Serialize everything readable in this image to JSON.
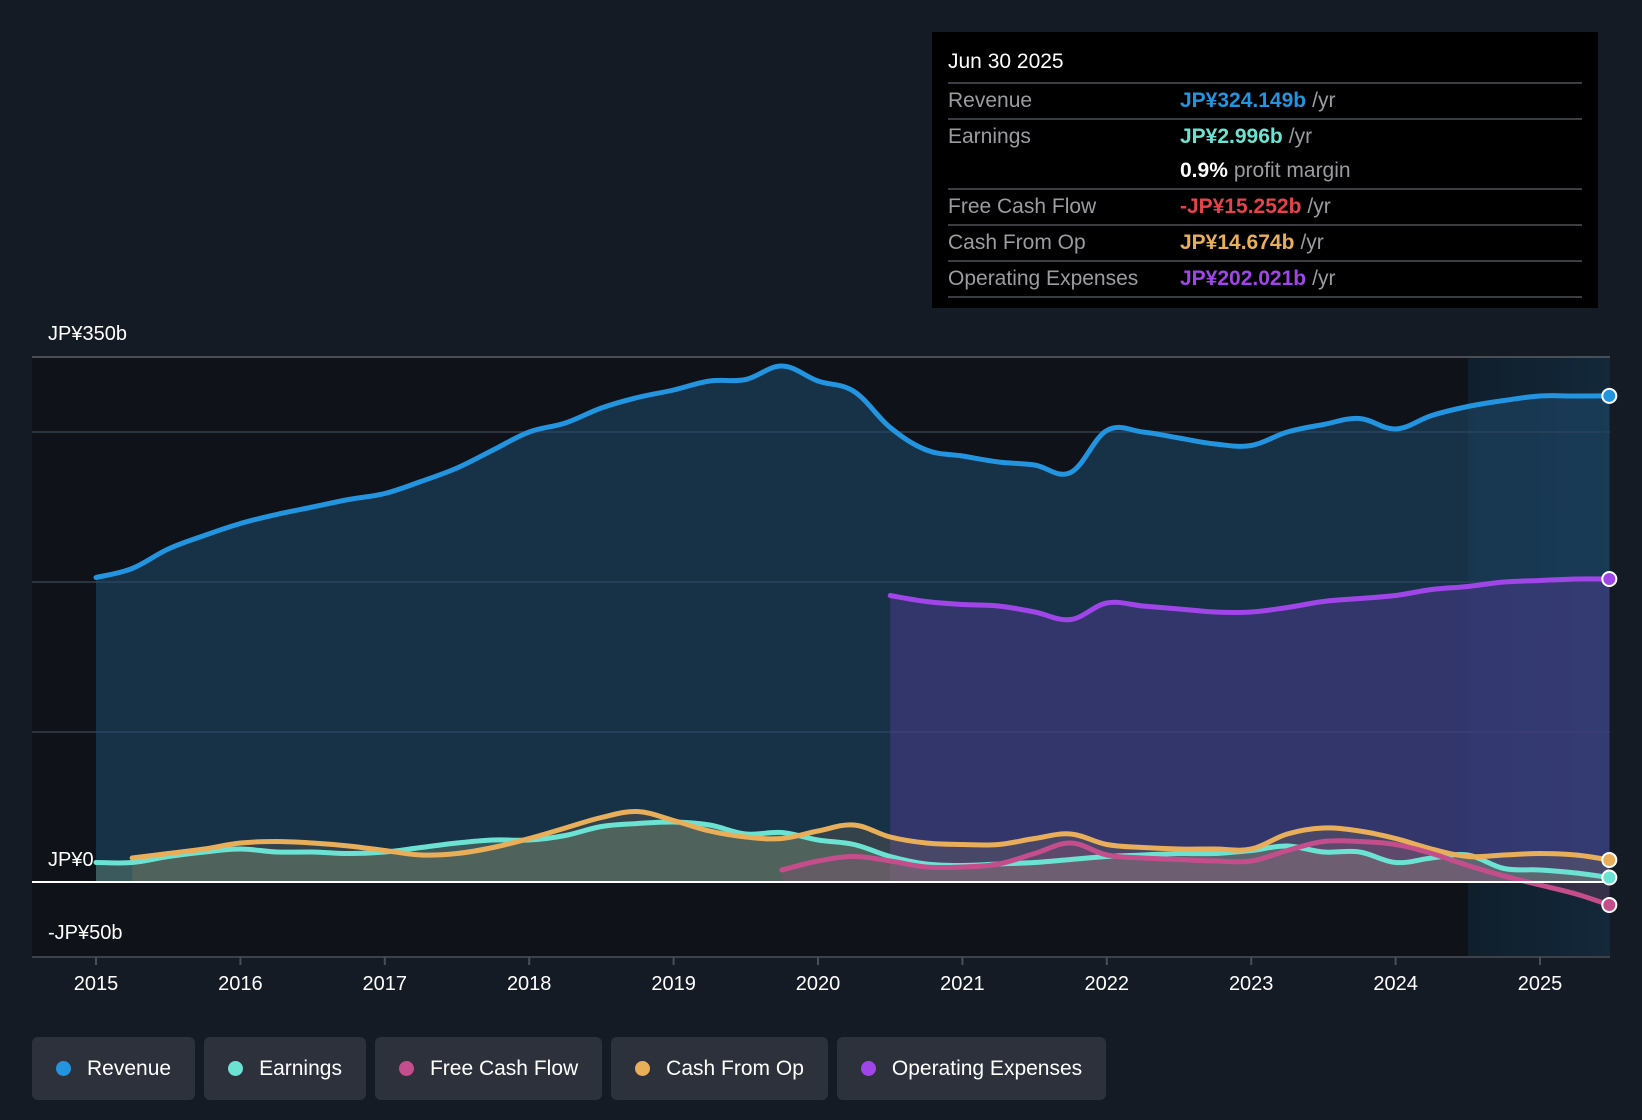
{
  "tooltip": {
    "date": "Jun 30 2025",
    "rows": [
      {
        "label": "Revenue",
        "value": "JP¥324.149b",
        "unit": "/yr",
        "color": "#2394df"
      },
      {
        "label": "Earnings",
        "value": "JP¥2.996b",
        "unit": "/yr",
        "color": "#6ce3d2"
      },
      {
        "label": "",
        "value": "0.9%",
        "unit": "profit margin",
        "color": "#ffffff"
      },
      {
        "label": "Free Cash Flow",
        "value": "-JP¥15.252b",
        "unit": "/yr",
        "color": "#e5434b"
      },
      {
        "label": "Cash From Op",
        "value": "JP¥14.674b",
        "unit": "/yr",
        "color": "#e8ae5a"
      },
      {
        "label": "Operating Expenses",
        "value": "JP¥202.021b",
        "unit": "/yr",
        "color": "#a046e8"
      }
    ]
  },
  "legend": [
    {
      "label": "Revenue",
      "color": "#2394df"
    },
    {
      "label": "Earnings",
      "color": "#6ce3d2"
    },
    {
      "label": "Free Cash Flow",
      "color": "#c44e8c"
    },
    {
      "label": "Cash From Op",
      "color": "#e8ae5a"
    },
    {
      "label": "Operating Expenses",
      "color": "#a046e8"
    }
  ],
  "chart_data": {
    "type": "area",
    "title": "",
    "xlabel": "",
    "ylabel": "",
    "xlim": [
      2014.55,
      2025.48
    ],
    "ylim": [
      -50,
      350
    ],
    "unit": "JP¥ billions",
    "y_tick_labels": [
      {
        "value": 350,
        "label": "JP¥350b"
      },
      {
        "value": 0,
        "label": "JP¥0"
      },
      {
        "value": -50,
        "label": "-JP¥50b"
      }
    ],
    "gridlines": [
      350,
      300,
      200,
      100,
      0
    ],
    "x_ticks": [
      2015,
      2016,
      2017,
      2018,
      2019,
      2020,
      2021,
      2022,
      2023,
      2024,
      2025
    ],
    "x_tick_labels": [
      "2015",
      "2016",
      "2017",
      "2018",
      "2019",
      "2020",
      "2021",
      "2022",
      "2023",
      "2024",
      "2025"
    ],
    "highlight_start": 2024.5,
    "series": [
      {
        "name": "Revenue",
        "color": "#2394df",
        "fill": true,
        "x": [
          2015.0,
          2015.25,
          2015.5,
          2015.75,
          2016.0,
          2016.25,
          2016.5,
          2016.75,
          2017.0,
          2017.25,
          2017.5,
          2017.75,
          2018.0,
          2018.25,
          2018.5,
          2018.75,
          2019.0,
          2019.25,
          2019.5,
          2019.75,
          2020.0,
          2020.25,
          2020.5,
          2020.75,
          2021.0,
          2021.25,
          2021.5,
          2021.75,
          2022.0,
          2022.25,
          2022.5,
          2022.75,
          2023.0,
          2023.25,
          2023.5,
          2023.75,
          2024.0,
          2024.25,
          2024.5,
          2024.75,
          2025.0,
          2025.25,
          2025.48
        ],
        "values": [
          203,
          209,
          222,
          231,
          239,
          245,
          250,
          255,
          259,
          267,
          276,
          288,
          300,
          306,
          316,
          323,
          328,
          334,
          335,
          344,
          334,
          327,
          303,
          288,
          284,
          280,
          278,
          273,
          301,
          300,
          296,
          292,
          291,
          300,
          305,
          309,
          302,
          311,
          317,
          321,
          324,
          324,
          324.1
        ]
      },
      {
        "name": "Operating Expenses",
        "color": "#a046e8",
        "fill": true,
        "x": [
          2020.5,
          2020.75,
          2021.0,
          2021.25,
          2021.5,
          2021.75,
          2022.0,
          2022.25,
          2022.5,
          2022.75,
          2023.0,
          2023.25,
          2023.5,
          2023.75,
          2024.0,
          2024.25,
          2024.5,
          2024.75,
          2025.0,
          2025.25,
          2025.48
        ],
        "values": [
          191,
          187,
          185,
          184,
          180,
          175,
          186,
          184,
          182,
          180,
          180,
          183,
          187,
          189,
          191,
          195,
          197,
          200,
          201,
          202,
          202
        ]
      },
      {
        "name": "Earnings",
        "color": "#6ce3d2",
        "fill": true,
        "x": [
          2015.0,
          2015.25,
          2015.5,
          2015.75,
          2016.0,
          2016.25,
          2016.5,
          2016.75,
          2017.0,
          2017.25,
          2017.5,
          2017.75,
          2018.0,
          2018.25,
          2018.5,
          2018.75,
          2019.0,
          2019.25,
          2019.5,
          2019.75,
          2020.0,
          2020.25,
          2020.5,
          2020.75,
          2021.0,
          2021.25,
          2021.5,
          2021.75,
          2022.0,
          2022.25,
          2022.5,
          2022.75,
          2023.0,
          2023.25,
          2023.5,
          2023.75,
          2024.0,
          2024.25,
          2024.5,
          2024.75,
          2025.0,
          2025.25,
          2025.48
        ],
        "values": [
          13,
          13,
          17,
          20,
          22,
          20,
          20,
          19,
          20,
          23,
          26,
          28,
          28,
          31,
          37,
          39,
          40,
          38,
          32,
          33,
          28,
          25,
          17,
          12,
          11,
          12,
          13,
          15,
          17,
          18,
          19,
          19,
          21,
          24,
          20,
          20,
          13,
          16,
          18,
          9,
          8,
          6,
          3.0
        ]
      },
      {
        "name": "Cash From Op",
        "color": "#e8ae5a",
        "fill": true,
        "x": [
          2015.25,
          2015.5,
          2015.75,
          2016.0,
          2016.25,
          2016.5,
          2016.75,
          2017.0,
          2017.25,
          2017.5,
          2017.75,
          2018.0,
          2018.25,
          2018.5,
          2018.75,
          2019.0,
          2019.25,
          2019.5,
          2019.75,
          2020.0,
          2020.25,
          2020.5,
          2020.75,
          2021.0,
          2021.25,
          2021.5,
          2021.75,
          2022.0,
          2022.25,
          2022.5,
          2022.75,
          2023.0,
          2023.25,
          2023.5,
          2023.75,
          2024.0,
          2024.25,
          2024.5,
          2024.75,
          2025.0,
          2025.25,
          2025.48
        ],
        "values": [
          16,
          19,
          22,
          26,
          27,
          26,
          24,
          21,
          18,
          19,
          23,
          29,
          36,
          43,
          47,
          41,
          34,
          30,
          29,
          34,
          38,
          30,
          26,
          25,
          25,
          29,
          32,
          25,
          23,
          22,
          22,
          22,
          32,
          36,
          34,
          29,
          22,
          17,
          18,
          19,
          18,
          14.7
        ]
      },
      {
        "name": "Free Cash Flow",
        "color": "#c44e8c",
        "fill": true,
        "x": [
          2019.75,
          2020.0,
          2020.25,
          2020.5,
          2020.75,
          2021.0,
          2021.25,
          2021.5,
          2021.75,
          2022.0,
          2022.25,
          2022.5,
          2022.75,
          2023.0,
          2023.25,
          2023.5,
          2023.75,
          2024.0,
          2024.25,
          2024.5,
          2024.75,
          2025.0,
          2025.25,
          2025.48
        ],
        "values": [
          8,
          14,
          17,
          14,
          10,
          10,
          12,
          19,
          26,
          18,
          16,
          15,
          14,
          14,
          21,
          27,
          27,
          25,
          19,
          11,
          4,
          -2,
          -8,
          -15.3
        ]
      }
    ]
  }
}
